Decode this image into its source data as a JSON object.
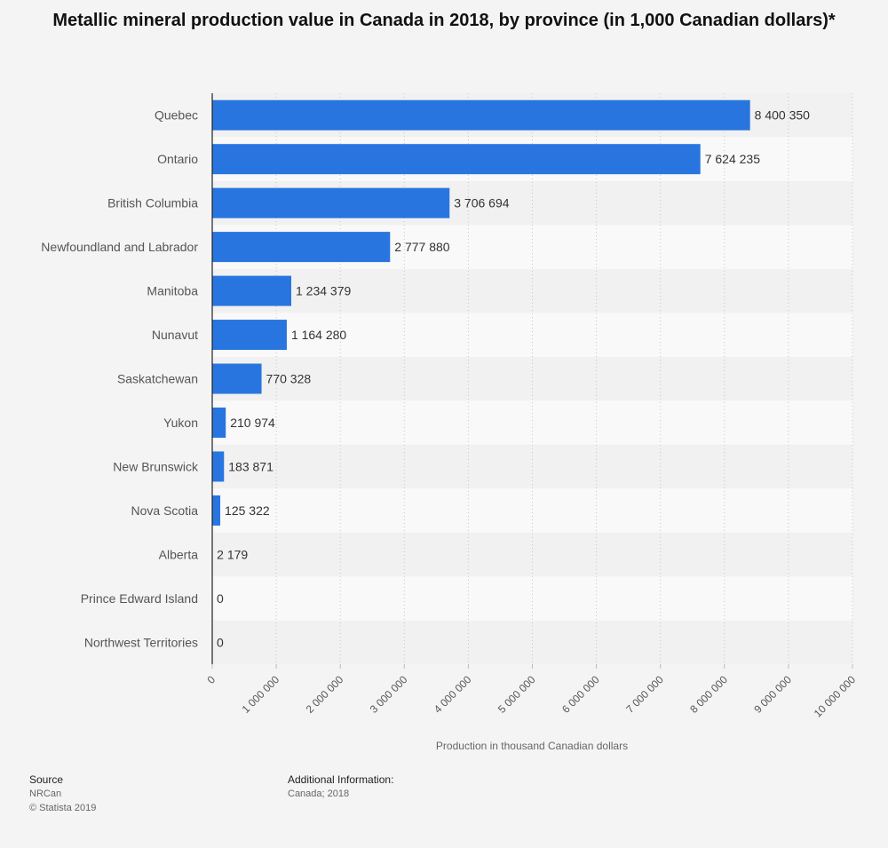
{
  "title": "Metallic mineral production value in Canada in 2018, by province (in 1,000 Canadian dollars)*",
  "chart_data": {
    "type": "bar",
    "orientation": "horizontal",
    "categories": [
      "Quebec",
      "Ontario",
      "British Columbia",
      "Newfoundland and Labrador",
      "Manitoba",
      "Nunavut",
      "Saskatchewan",
      "Yukon",
      "New Brunswick",
      "Nova Scotia",
      "Alberta",
      "Prince Edward Island",
      "Northwest Territories"
    ],
    "values": [
      8400350,
      7624235,
      3706694,
      2777880,
      1234379,
      1164280,
      770328,
      210974,
      183871,
      125322,
      2179,
      0,
      0
    ],
    "value_labels": [
      "8 400 350",
      "7 624 235",
      "3 706 694",
      "2 777 880",
      "1 234 379",
      "1 164 280",
      "770 328",
      "210 974",
      "183 871",
      "125 322",
      "2 179",
      "0",
      "0"
    ],
    "xlabel": "Production in thousand Canadian dollars",
    "xlim": [
      0,
      10000000
    ],
    "xticks": [
      0,
      1000000,
      2000000,
      3000000,
      4000000,
      5000000,
      6000000,
      7000000,
      8000000,
      9000000,
      10000000
    ],
    "xtick_labels": [
      "0",
      "1 000 000",
      "2 000 000",
      "3 000 000",
      "4 000 000",
      "5 000 000",
      "6 000 000",
      "7 000 000",
      "8 000 000",
      "9 000 000",
      "10 000 000"
    ],
    "bar_color": "#2875e0",
    "grid": true
  },
  "footer": {
    "source_label": "Source",
    "source_value": "NRCan",
    "copyright": "© Statista 2019",
    "additional_label": "Additional Information:",
    "additional_value": "Canada; 2018"
  }
}
